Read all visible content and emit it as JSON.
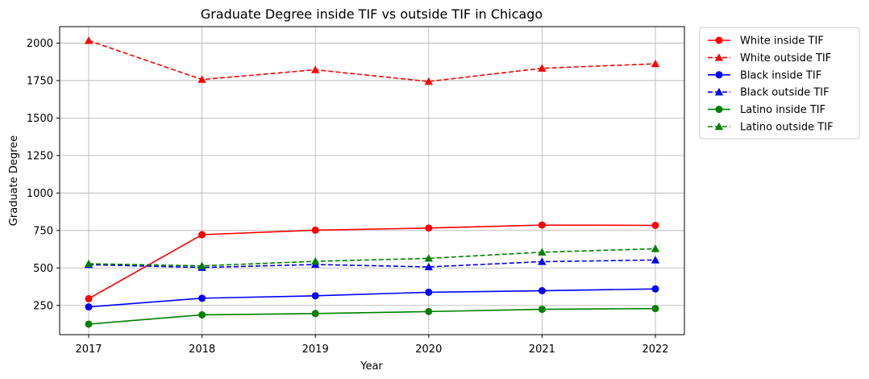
{
  "chart_data": {
    "type": "line",
    "title": "Graduate Degree inside TIF vs outside TIF in Chicago",
    "xlabel": "Year",
    "ylabel": "Graduate Degree",
    "x": [
      "2017",
      "2018",
      "2019",
      "2020",
      "2021",
      "2022"
    ],
    "yticks": [
      250,
      500,
      750,
      1000,
      1250,
      1500,
      1750,
      2000
    ],
    "ytick_labels": [
      "250",
      "500",
      "750",
      "1000",
      "1250",
      "1500",
      "1750",
      "2000"
    ],
    "ylim": [
      55,
      2110
    ],
    "grid": true,
    "legend_position": "outside-top-right",
    "series": [
      {
        "name": "White inside TIF",
        "color": "#ff0000",
        "style": "solid",
        "marker": "circle",
        "values": [
          295,
          722,
          752,
          766,
          786,
          784
        ]
      },
      {
        "name": "White outside TIF",
        "color": "#ff0000",
        "style": "dashed",
        "marker": "triangle",
        "values": [
          2017,
          1757,
          1822,
          1744,
          1832,
          1862
        ]
      },
      {
        "name": "Black inside TIF",
        "color": "#0000ff",
        "style": "solid",
        "marker": "circle",
        "values": [
          240,
          298,
          314,
          338,
          348,
          360
        ]
      },
      {
        "name": "Black outside TIF",
        "color": "#0000ff",
        "style": "dashed",
        "marker": "triangle",
        "values": [
          522,
          503,
          523,
          507,
          542,
          553
        ]
      },
      {
        "name": "Latino inside TIF",
        "color": "#008000",
        "style": "solid",
        "marker": "circle",
        "values": [
          125,
          187,
          196,
          209,
          224,
          229
        ]
      },
      {
        "name": "Latino outside TIF",
        "color": "#008000",
        "style": "dashed",
        "marker": "triangle",
        "values": [
          528,
          514,
          544,
          564,
          605,
          628
        ]
      }
    ]
  }
}
